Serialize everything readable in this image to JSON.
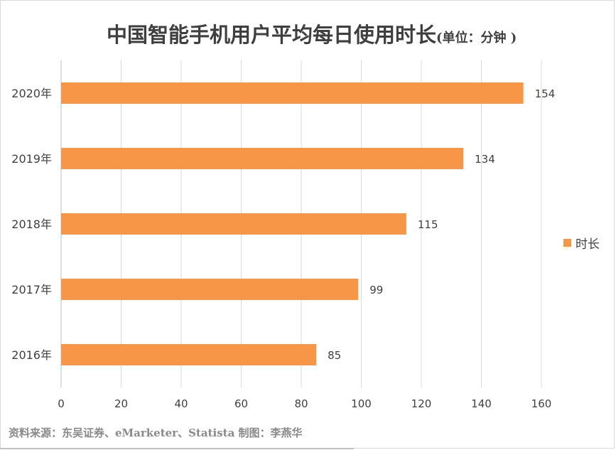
{
  "chart_data": {
    "type": "bar",
    "orientation": "horizontal",
    "title": "中国智能手机用户平均每日使用时长",
    "title_unit": "(单位：分钟 )",
    "categories": [
      "2020年",
      "2019年",
      "2018年",
      "2017年",
      "2016年"
    ],
    "series": [
      {
        "name": "时长",
        "values": [
          154,
          134,
          115,
          99,
          85
        ],
        "color": "#f79646"
      }
    ],
    "xlim": [
      0,
      160
    ],
    "xticks": [
      0,
      20,
      40,
      60,
      80,
      100,
      120,
      140,
      160
    ],
    "grid": true,
    "legend_position": "right",
    "data_labels": true
  },
  "source_note": "资料来源：东吴证券、eMarketer、Statista  制图：李燕华"
}
